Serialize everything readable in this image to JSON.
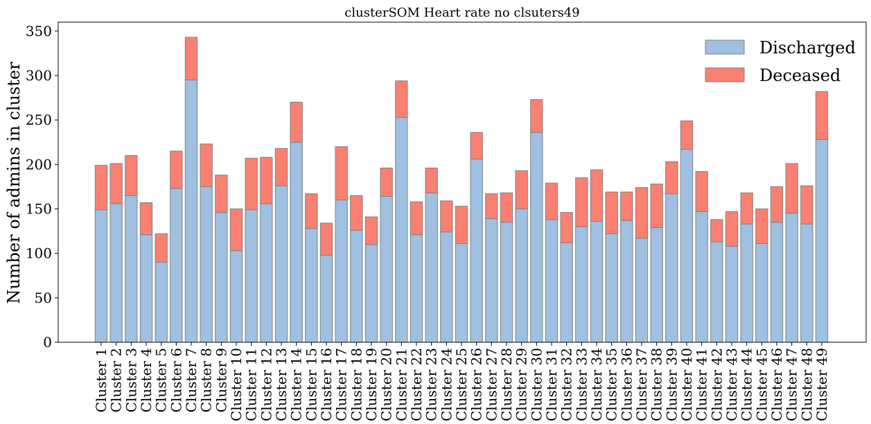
{
  "chart_data": {
    "type": "bar",
    "stacked": true,
    "title": "clusterSOM Heart rate no clsuters49",
    "xlabel": "",
    "ylabel": "Number of admins in cluster",
    "ylim": [
      0,
      360
    ],
    "yticks": [
      0,
      50,
      100,
      150,
      200,
      250,
      300,
      350
    ],
    "legend_position": "top-right",
    "categories": [
      "Cluster 1",
      "Cluster 2",
      "Cluster 3",
      "Cluster 4",
      "Cluster 5",
      "Cluster 6",
      "Cluster 7",
      "Cluster 8",
      "Cluster 9",
      "Cluster 10",
      "Cluster 11",
      "Cluster 12",
      "Cluster 13",
      "Cluster 14",
      "Cluster 15",
      "Cluster 16",
      "Cluster 17",
      "Cluster 18",
      "Cluster 19",
      "Cluster 20",
      "Cluster 21",
      "Cluster 22",
      "Cluster 23",
      "Cluster 24",
      "Cluster 25",
      "Cluster 26",
      "Cluster 27",
      "Cluster 28",
      "Cluster 29",
      "Cluster 30",
      "Cluster 31",
      "Cluster 32",
      "Cluster 33",
      "Cluster 34",
      "Cluster 35",
      "Cluster 36",
      "Cluster 37",
      "Cluster 38",
      "Cluster 39",
      "Cluster 40",
      "Cluster 41",
      "Cluster 42",
      "Cluster 43",
      "Cluster 44",
      "Cluster 45",
      "Cluster 46",
      "Cluster 47",
      "Cluster 48",
      "Cluster 49"
    ],
    "series": [
      {
        "name": "Discharged",
        "color": "#9fc0e0",
        "values": [
          149,
          156,
          165,
          121,
          90,
          173,
          295,
          175,
          146,
          103,
          149,
          156,
          176,
          225,
          128,
          98,
          160,
          126,
          110,
          164,
          253,
          121,
          168,
          124,
          111,
          206,
          139,
          135,
          150,
          236,
          138,
          112,
          130,
          136,
          122,
          137,
          117,
          129,
          167,
          217,
          147,
          113,
          108,
          133,
          111,
          135,
          145,
          133,
          228
        ]
      },
      {
        "name": "Deceased",
        "color": "#fa8072",
        "values": [
          50,
          45,
          45,
          36,
          32,
          42,
          48,
          48,
          42,
          47,
          58,
          52,
          42,
          45,
          39,
          36,
          60,
          39,
          31,
          32,
          41,
          37,
          28,
          35,
          42,
          30,
          28,
          33,
          43,
          37,
          41,
          34,
          55,
          58,
          47,
          32,
          57,
          49,
          36,
          32,
          45,
          25,
          39,
          35,
          39,
          40,
          56,
          43,
          54
        ]
      }
    ],
    "edge_color": "#808080"
  }
}
